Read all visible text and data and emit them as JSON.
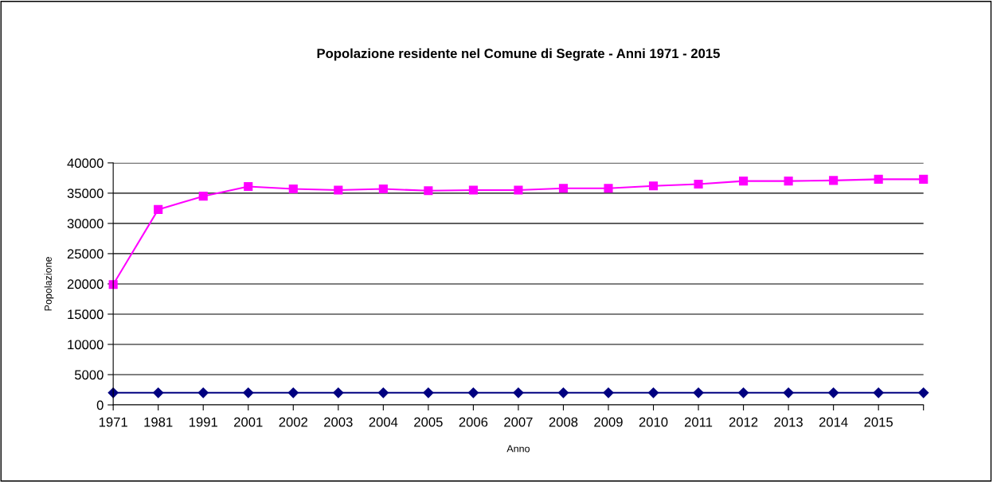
{
  "chart_data": {
    "type": "line",
    "title": "Popolazione residente nel Comune di Segrate - Anni 1971 - 2015",
    "xlabel": "Anno",
    "ylabel": "Popolazione",
    "categories": [
      "1971",
      "1981",
      "1991",
      "2001",
      "2002",
      "2003",
      "2004",
      "2005",
      "2006",
      "2007",
      "2008",
      "2009",
      "2010",
      "2011",
      "2012",
      "2013",
      "2014",
      "2015",
      null
    ],
    "series": [
      {
        "color": "#000080",
        "marker": "diamond",
        "values": [
          2000,
          2000,
          2000,
          2000,
          2000,
          2000,
          2000,
          2000,
          2000,
          2000,
          2000,
          2000,
          2000,
          2000,
          2000,
          2000,
          2000,
          2000,
          2000
        ]
      },
      {
        "color": "#ff00ff",
        "marker": "square",
        "values": [
          19900,
          32300,
          34500,
          36100,
          35700,
          35500,
          35700,
          35400,
          35500,
          35500,
          35800,
          35800,
          36200,
          36500,
          37000,
          37000,
          37100,
          37300,
          37300
        ]
      }
    ],
    "ylim": [
      0,
      40000
    ],
    "yticks": [
      0,
      5000,
      10000,
      15000,
      20000,
      25000,
      30000,
      35000,
      40000
    ],
    "grid": "y"
  }
}
